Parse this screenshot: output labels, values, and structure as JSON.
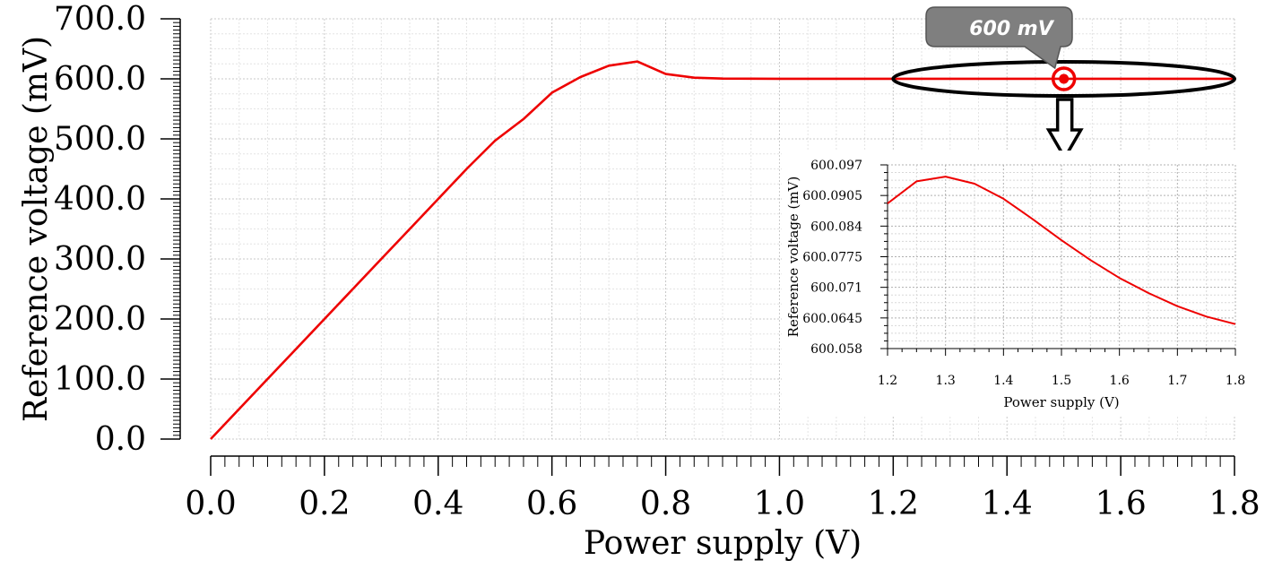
{
  "chart_data": [
    {
      "type": "line",
      "xlabel": "Power supply (V)",
      "ylabel": "Reference voltage (mV)",
      "xlim": [
        0.0,
        1.8
      ],
      "ylim": [
        0.0,
        700.0
      ],
      "xticks": [
        "0.0",
        "0.2",
        "0.4",
        "0.6",
        "0.8",
        "1.0",
        "1.2",
        "1.4",
        "1.6",
        "1.8"
      ],
      "yticks": [
        "0.0",
        "100.0",
        "200.0",
        "300.0",
        "400.0",
        "500.0",
        "600.0",
        "700.0"
      ],
      "grid": true,
      "series": [
        {
          "color": "#ee0000",
          "x": [
            0.0,
            0.05,
            0.1,
            0.15,
            0.2,
            0.25,
            0.3,
            0.35,
            0.4,
            0.45,
            0.5,
            0.55,
            0.6,
            0.65,
            0.7,
            0.75,
            0.8,
            0.85,
            0.9,
            1.0,
            1.2,
            1.4,
            1.6,
            1.8
          ],
          "y": [
            0,
            50,
            100,
            150,
            200,
            250,
            300,
            350,
            400,
            450,
            497,
            533,
            577,
            603,
            622,
            629,
            608,
            602,
            600.5,
            600.1,
            600.1,
            600.1,
            600.1,
            600.1
          ]
        }
      ],
      "annotation": {
        "label": "600 mV",
        "x": 1.5,
        "y": 600
      }
    },
    {
      "type": "line",
      "xlabel": "Power supply (V)",
      "ylabel": "Reference voltage (mV)",
      "xlim": [
        1.2,
        1.8
      ],
      "ylim": [
        600.058,
        600.097
      ],
      "xticks": [
        "1.2",
        "1.3",
        "1.4",
        "1.5",
        "1.6",
        "1.7",
        "1.8"
      ],
      "yticks": [
        "600.058",
        "600.0645",
        "600.071",
        "600.0775",
        "600.084",
        "600.0905",
        "600.097"
      ],
      "grid": true,
      "series": [
        {
          "color": "#ee0000",
          "x": [
            1.2,
            1.25,
            1.3,
            1.35,
            1.4,
            1.45,
            1.5,
            1.55,
            1.6,
            1.65,
            1.7,
            1.75,
            1.8
          ],
          "y": [
            600.0888,
            600.0935,
            600.0945,
            600.093,
            600.0898,
            600.0855,
            600.081,
            600.0768,
            600.073,
            600.0698,
            600.067,
            600.0648,
            600.0632
          ]
        }
      ]
    }
  ]
}
